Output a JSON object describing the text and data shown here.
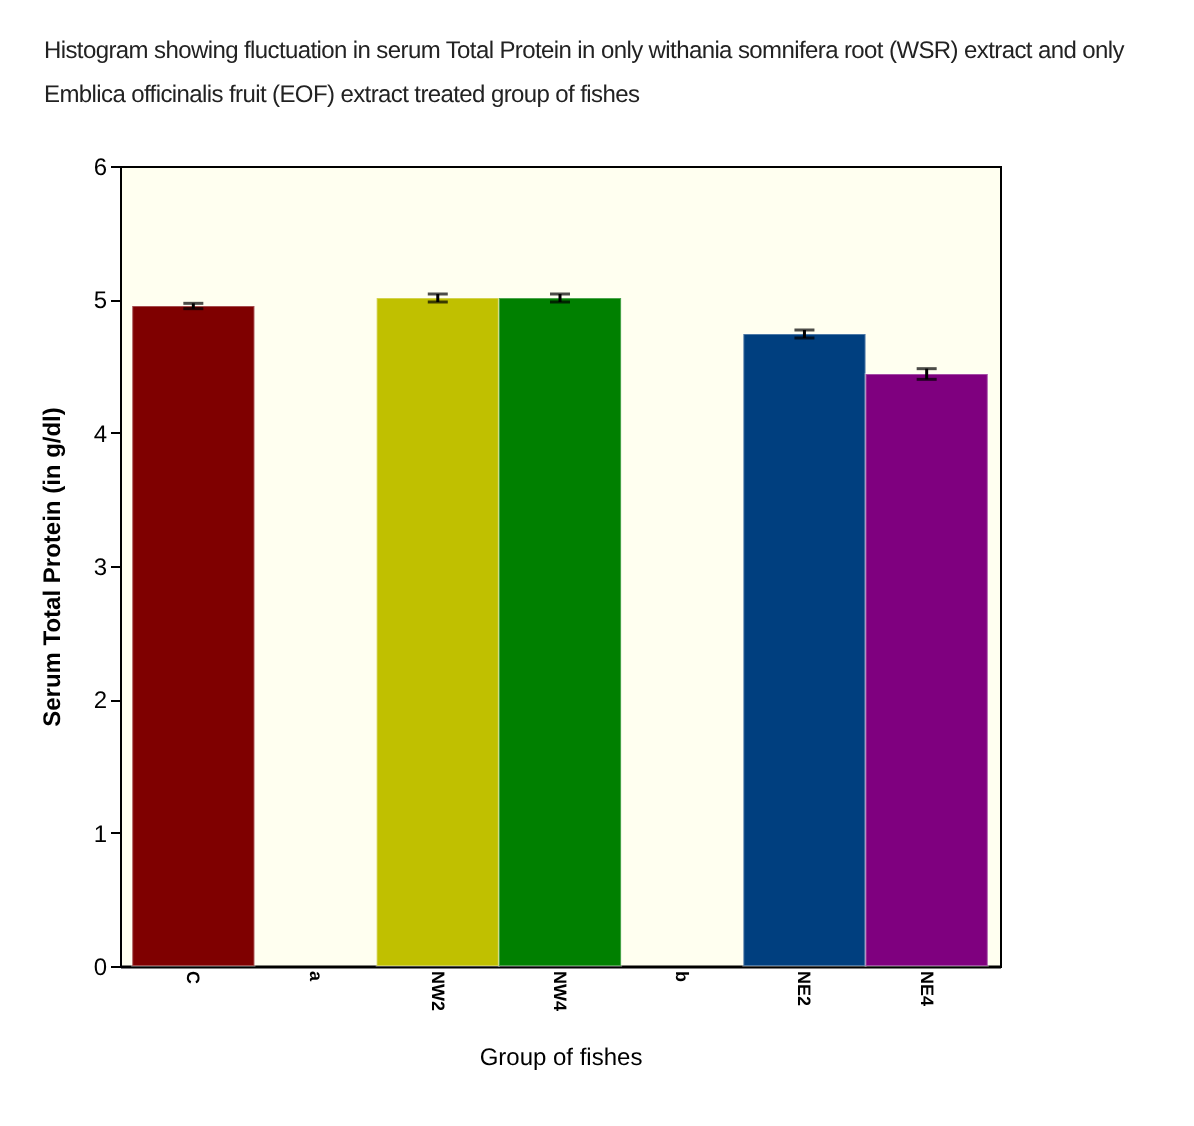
{
  "chart_data": {
    "type": "bar",
    "title": "Histogram showing fluctuation in serum Total Protein in only withania somnifera root (WSR) extract and only Emblica officinalis fruit (EOF) extract treated group of fishes",
    "xlabel": "Group of fishes",
    "ylabel": "Serum Total Protein (in g/dl)",
    "categories": [
      "C",
      "a",
      "NW2",
      "NW4",
      "b",
      "NE2",
      "NE4"
    ],
    "values": [
      4.95,
      null,
      5.01,
      5.01,
      null,
      4.74,
      4.44
    ],
    "errors": [
      0.02,
      null,
      0.03,
      0.03,
      null,
      0.03,
      0.04
    ],
    "colors": [
      "#7f0000",
      null,
      "#c0c000",
      "#008000",
      null,
      "#003f7f",
      "#7f007f"
    ],
    "ylim": [
      0,
      6
    ],
    "yticks": [
      0,
      1,
      2,
      3,
      4,
      5,
      6
    ],
    "grid": false
  }
}
